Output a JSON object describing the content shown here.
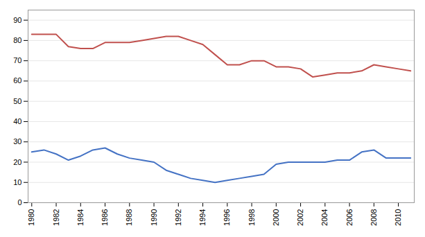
{
  "chart_data": {
    "type": "line",
    "x": [
      1980,
      1981,
      1982,
      1983,
      1984,
      1985,
      1986,
      1987,
      1988,
      1989,
      1990,
      1991,
      1992,
      1993,
      1994,
      1995,
      1996,
      1997,
      1998,
      1999,
      2000,
      2001,
      2002,
      2003,
      2004,
      2005,
      2006,
      2007,
      2008,
      2009,
      2010,
      2011
    ],
    "series": [
      {
        "color": "#C0504D",
        "values": [
          83,
          83,
          83,
          77,
          76,
          76,
          79,
          79,
          79,
          80,
          81,
          82,
          82,
          80,
          78,
          73,
          68,
          68,
          70,
          70,
          67,
          67,
          66,
          62,
          63,
          64,
          64,
          65,
          68,
          67,
          66,
          65
        ]
      },
      {
        "color": "#4472C4",
        "values": [
          25,
          26,
          24,
          21,
          23,
          26,
          27,
          24,
          22,
          21,
          20,
          16,
          14,
          12,
          11,
          10,
          11,
          12,
          13,
          14,
          19,
          20,
          20,
          20,
          20,
          21,
          21,
          25,
          26,
          22,
          22,
          22
        ]
      }
    ],
    "xlim": [
      1979.7,
      2011.3
    ],
    "xticks": [
      1980,
      1982,
      1984,
      1986,
      1988,
      1990,
      1992,
      1994,
      1996,
      1998,
      2000,
      2002,
      2004,
      2006,
      2008,
      2010
    ],
    "ylim": [
      0,
      95
    ],
    "yticks": [
      0,
      10,
      20,
      30,
      40,
      50,
      60,
      70,
      80,
      90
    ],
    "grid": true
  }
}
